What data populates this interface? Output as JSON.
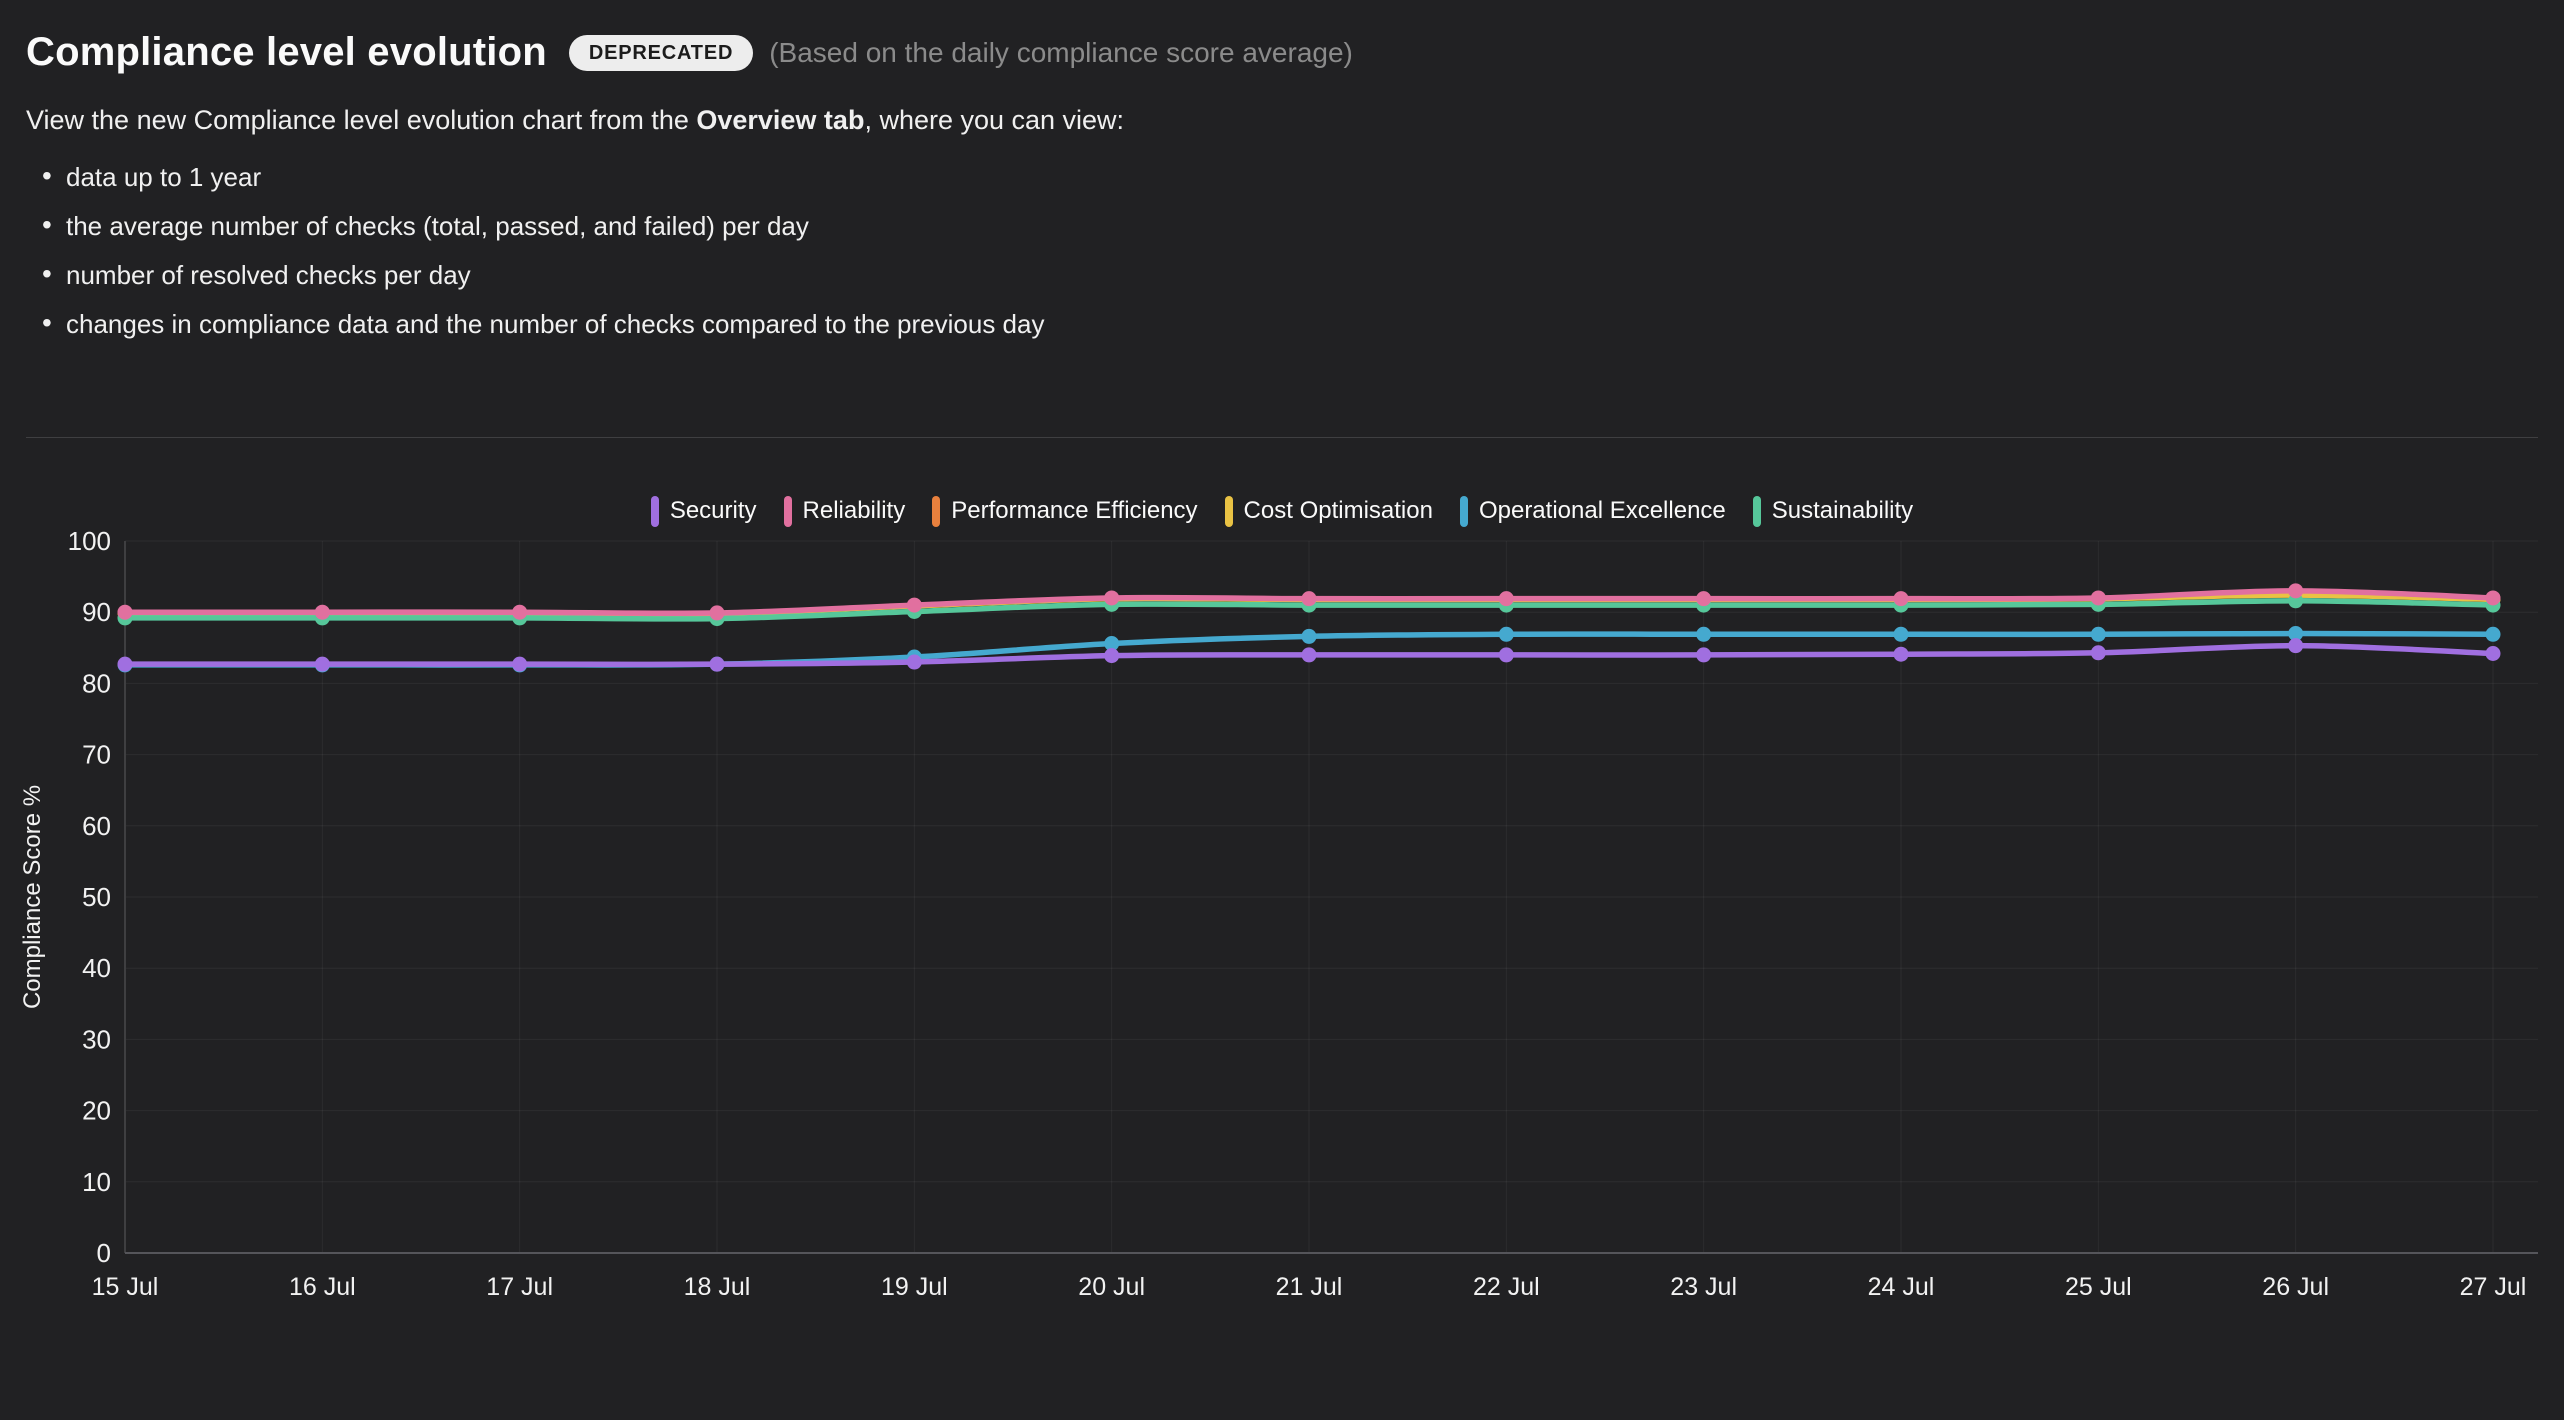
{
  "header": {
    "title": "Compliance level evolution",
    "badge": "DEPRECATED",
    "subtitle": "(Based on the daily compliance score average)",
    "description_prefix": "View the new Compliance level evolution chart from the ",
    "description_bold": "Overview tab",
    "description_suffix": ", where you can view:",
    "bullets": [
      "data up to 1 year",
      "the average number of checks (total, passed, and failed) per day",
      "number of resolved checks per day",
      "changes in compliance data and the number of checks compared to the previous day"
    ]
  },
  "colors": {
    "background": "#212123",
    "grid": "rgba(255,255,255,0.055)",
    "axis_line": "#3f3f41",
    "baseline": "#55555a",
    "tick_text": "#f2f2f2"
  },
  "chart_data": {
    "type": "line",
    "title": "",
    "xlabel": "",
    "ylabel": "Compliance Score %",
    "ylim": [
      0,
      100
    ],
    "y_ticks": [
      0,
      10,
      20,
      30,
      40,
      50,
      60,
      70,
      80,
      90,
      100
    ],
    "grid": true,
    "legend_position": "top",
    "categories": [
      "15 Jul",
      "16 Jul",
      "17 Jul",
      "18 Jul",
      "19 Jul",
      "20 Jul",
      "21 Jul",
      "22 Jul",
      "23 Jul",
      "24 Jul",
      "25 Jul",
      "26 Jul",
      "27 Jul"
    ],
    "series": [
      {
        "name": "Security",
        "color": "#a06fe0",
        "values": [
          82.7,
          82.7,
          82.7,
          82.7,
          83.0,
          83.9,
          84.0,
          84.0,
          84.0,
          84.1,
          84.3,
          85.3,
          84.2
        ]
      },
      {
        "name": "Reliability",
        "color": "#e1709f",
        "values": [
          90.0,
          90.0,
          90.0,
          89.9,
          91.0,
          92.0,
          91.9,
          91.9,
          91.9,
          91.9,
          92.0,
          93.0,
          92.0
        ]
      },
      {
        "name": "Performance Efficiency",
        "color": "#e8803d",
        "values": [
          89.9,
          89.9,
          89.9,
          89.8,
          90.9,
          91.9,
          91.8,
          91.8,
          91.8,
          91.8,
          91.9,
          92.8,
          91.9
        ]
      },
      {
        "name": "Cost Optimisation",
        "color": "#e9c244",
        "values": [
          89.9,
          89.9,
          89.9,
          89.8,
          90.9,
          91.9,
          91.8,
          91.8,
          91.8,
          91.8,
          91.9,
          92.4,
          91.8
        ]
      },
      {
        "name": "Operational Excellence",
        "color": "#45a9cf",
        "values": [
          82.6,
          82.6,
          82.6,
          82.7,
          83.7,
          85.6,
          86.6,
          86.9,
          86.9,
          86.9,
          86.9,
          87.0,
          86.9
        ]
      },
      {
        "name": "Sustainability",
        "color": "#56c79a",
        "values": [
          89.2,
          89.2,
          89.2,
          89.1,
          90.1,
          91.1,
          91.0,
          91.0,
          91.0,
          91.0,
          91.1,
          91.6,
          91.0
        ]
      }
    ],
    "render_order": [
      2,
      3,
      5,
      4,
      0,
      1
    ]
  }
}
